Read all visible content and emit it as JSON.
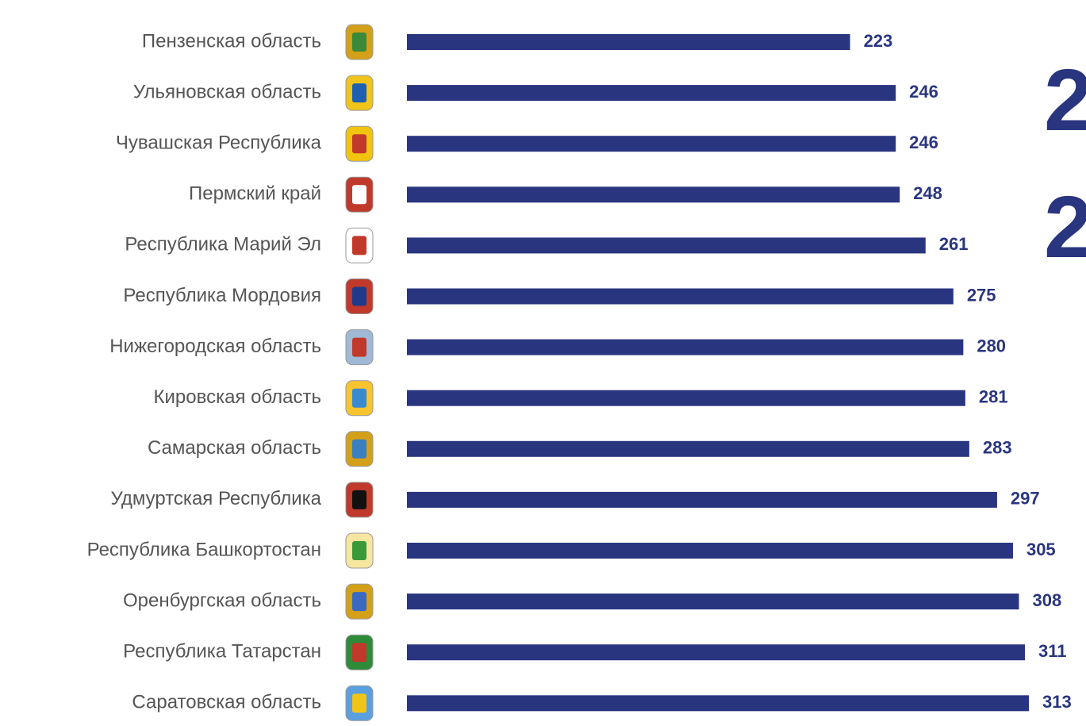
{
  "chart_data": {
    "type": "bar",
    "orientation": "horizontal",
    "categories": [
      "Пензенская область",
      "Ульяновская область",
      "Чувашская Республика",
      "Пермский край",
      "Республика Марий Эл",
      "Республика Мордовия",
      "Нижегородская область",
      "Кировская область",
      "Самарская область",
      "Удмуртская Республика",
      "Республика Башкортостан",
      "Оренбургская область",
      "Республика Татарстан",
      "Саратовская область"
    ],
    "values": [
      223,
      246,
      246,
      248,
      261,
      275,
      280,
      281,
      283,
      297,
      305,
      308,
      311,
      313
    ],
    "color": "#2a3580",
    "annotations": [
      "2",
      "2"
    ]
  }
}
